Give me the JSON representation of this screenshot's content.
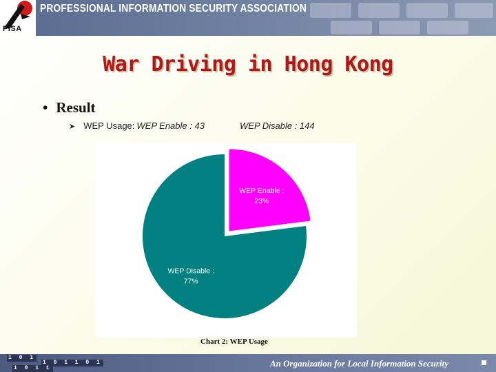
{
  "header": {
    "org_name": "PROFESSIONAL INFORMATION SECURITY ASSOCIATION",
    "logo_text": "PISA"
  },
  "slide": {
    "title": "War Driving in Hong Kong",
    "bullet": "Result",
    "sub_bullet": {
      "label": "WEP Usage:",
      "enable_text": "WEP Enable : 43",
      "disable_text": "WEP Disable : 144"
    },
    "caption": "Chart 2: WEP Usage"
  },
  "chart_data": {
    "type": "pie",
    "slices": [
      {
        "label": "WEP Enable :",
        "value": 43,
        "percent_label": "23%",
        "color": "#ff00ff",
        "exploded": true
      },
      {
        "label": "WEP Disable :",
        "value": 144,
        "percent_label": "77%",
        "color": "#008080",
        "exploded": false
      }
    ]
  },
  "footer": {
    "tagline": "An Organization for Local Information Security",
    "binary_1": "1 0 1",
    "binary_2": "1 0 1 1 0 1",
    "binary_3": "1 0 1 1"
  },
  "colors": {
    "title": "#b01818",
    "header_bg": "#6f7fa0",
    "enable": "#ff00ff",
    "disable": "#008080"
  }
}
